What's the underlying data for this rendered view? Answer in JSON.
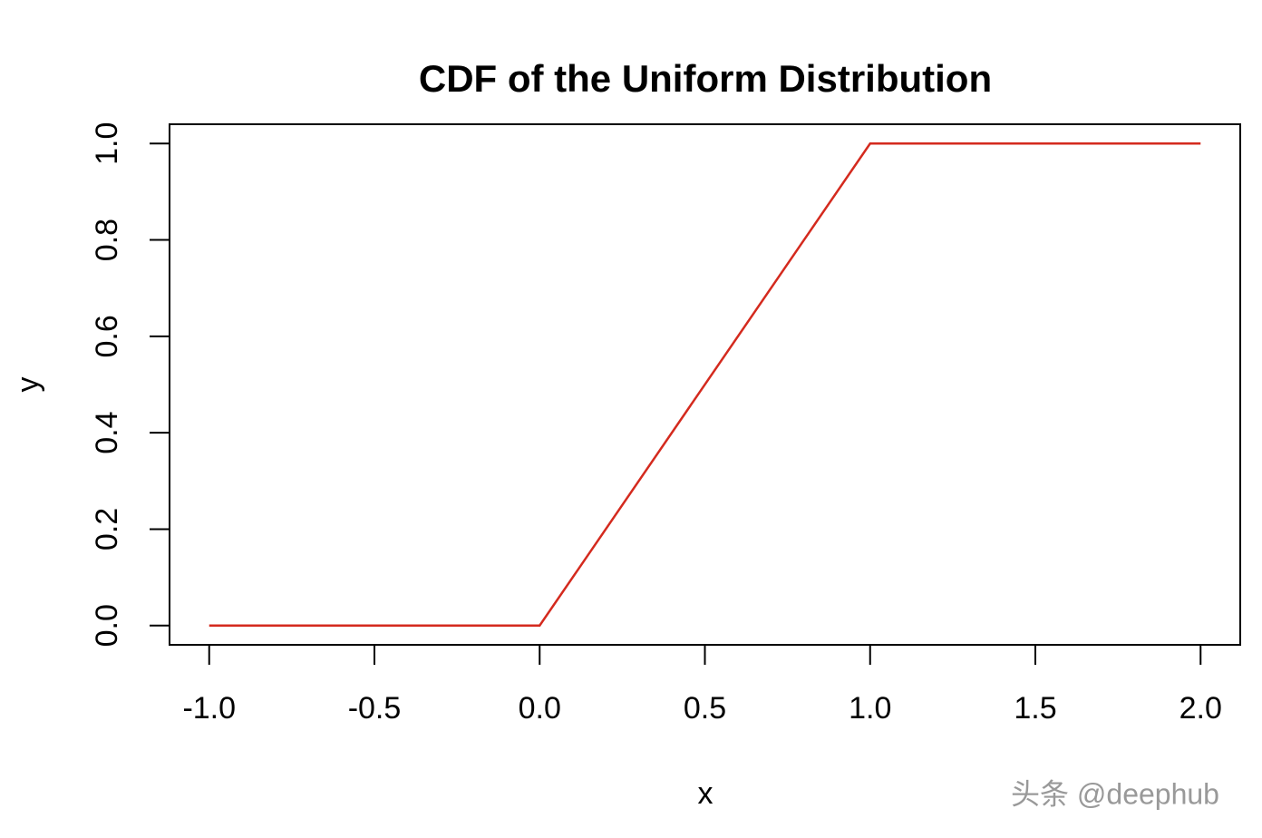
{
  "chart_data": {
    "type": "line",
    "title": "CDF of the Uniform Distribution",
    "x_label": "x",
    "y_label": "y",
    "x": [
      -1,
      0,
      1,
      2
    ],
    "series": [
      {
        "color": "#d42a1e",
        "values": [
          0,
          0,
          1,
          1
        ]
      }
    ],
    "xlim": [
      -1.12,
      2.12
    ],
    "ylim": [
      -0.04,
      1.04
    ],
    "xticks": [
      {
        "value": -1,
        "label": "-1.0"
      },
      -0.5,
      {
        "value": 0,
        "label": "0.0"
      },
      0.5,
      {
        "value": 1,
        "label": "1.0"
      },
      1.5,
      {
        "value": 2,
        "label": "2.0"
      }
    ],
    "yticks": [
      {
        "value": 0,
        "label": "0.0"
      },
      0.2,
      0.4,
      0.6,
      0.8,
      {
        "value": 1,
        "label": "1.0"
      }
    ],
    "watermark": "头条 @deephub"
  }
}
